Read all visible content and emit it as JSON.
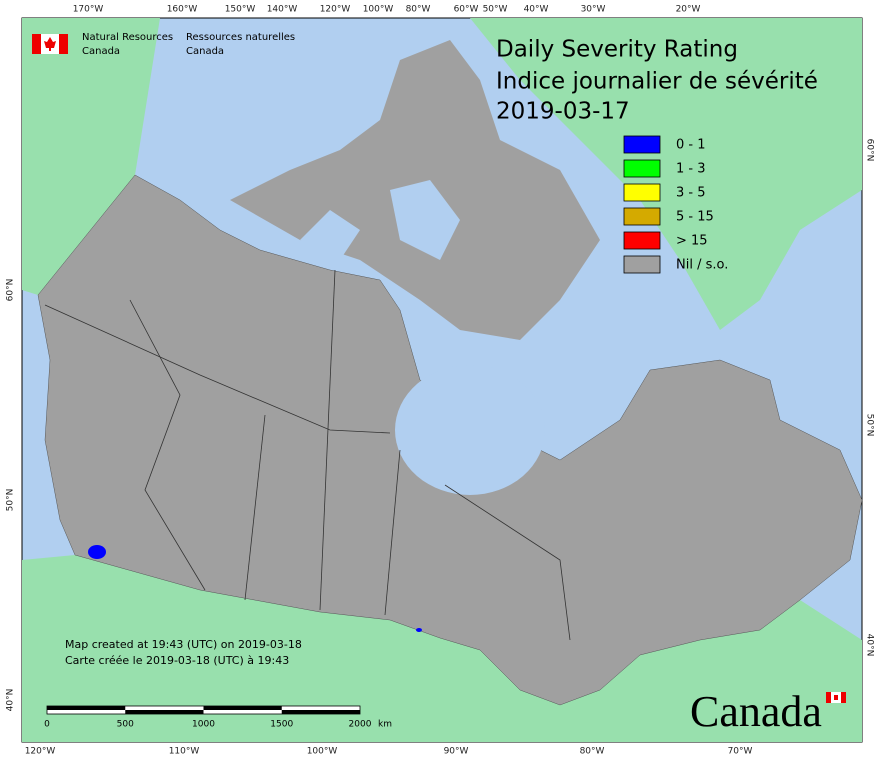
{
  "logo": {
    "en_line1": "Natural Resources",
    "en_line2": "Canada",
    "fr_line1": "Ressources naturelles",
    "fr_line2": "Canada"
  },
  "title": {
    "line1": "Daily Severity Rating",
    "line2": "Indice journalier de sévérité",
    "date": "2019-03-17"
  },
  "legend": [
    {
      "label": "0 - 1",
      "color": "#0000ff"
    },
    {
      "label": "1 - 3",
      "color": "#00ff00"
    },
    {
      "label": "3 - 5",
      "color": "#ffff00"
    },
    {
      "label": "5 - 15",
      "color": "#d4aa00"
    },
    {
      "label": "> 15",
      "color": "#ff0000"
    },
    {
      "label": "Nil / s.o.",
      "color": "#a0a0a0"
    }
  ],
  "credits": [
    "Map created at 19:43 (UTC) on 2019-03-18",
    "Carte créée le 2019-03-18 (UTC) à 19:43"
  ],
  "scale_bar": {
    "ticks": [
      "0",
      "500",
      "1000",
      "1500",
      "2000"
    ],
    "unit": "km"
  },
  "graticule": {
    "top": [
      "170°W",
      "160°W",
      "150°W",
      "140°W",
      "120°W",
      "100°W",
      "80°W",
      "60°W",
      "50°W",
      "40°W",
      "30°W",
      "20°W"
    ],
    "bottom": [
      "120°W",
      "110°W",
      "100°W",
      "90°W",
      "80°W",
      "70°W"
    ],
    "left": [
      "60°N",
      "50°N",
      "40°N"
    ],
    "right": [
      "60°N",
      "50°N",
      "40°N"
    ]
  },
  "wordmark": "Canada"
}
